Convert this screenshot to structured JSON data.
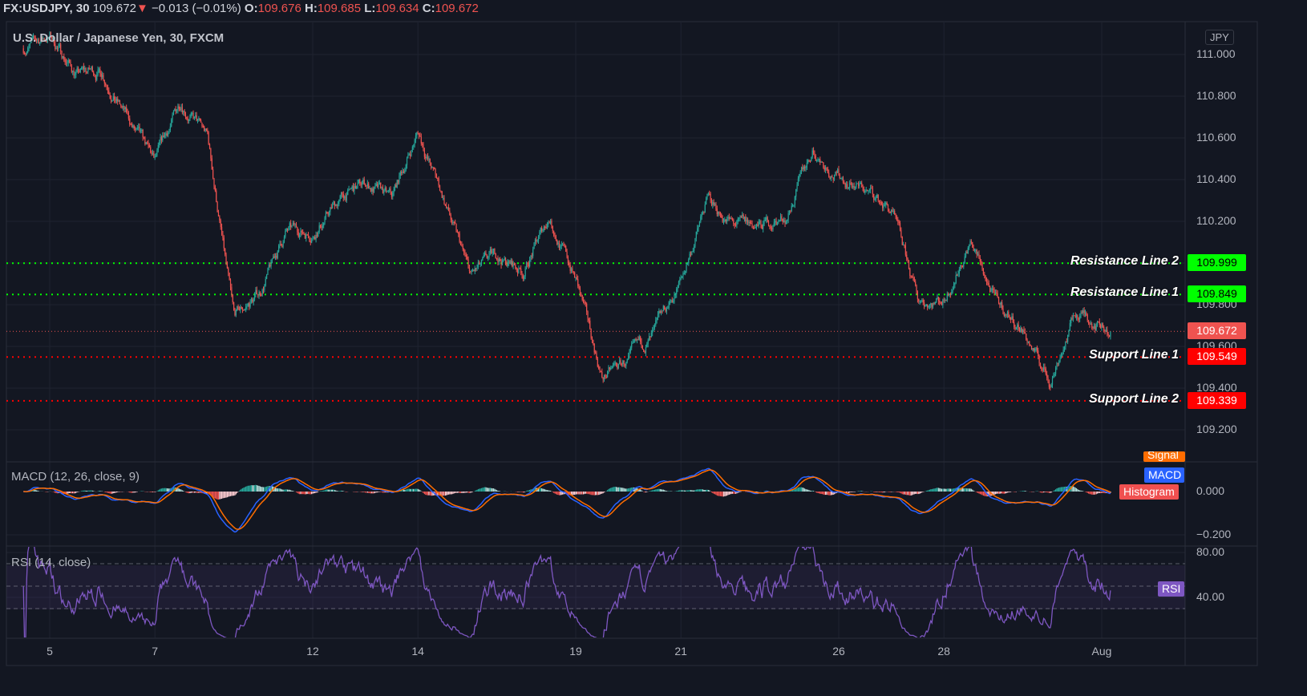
{
  "header": {
    "symbol": "FX:USDJPY, 30",
    "last": "109.672",
    "change": "−0.013 (−0.01%)",
    "o_label": "O:",
    "o": "109.676",
    "h_label": "H:",
    "h": "109.685",
    "l_label": "L:",
    "l": "109.634",
    "c_label": "C:",
    "c": "109.672"
  },
  "colors": {
    "background": "#131722",
    "up": "#26a69a",
    "down": "#ef5350",
    "resistance": "#00ff00",
    "support": "#ff0000",
    "macd": "#2962ff",
    "signal": "#ff6d00",
    "rsi": "#7e57c2"
  },
  "chart_data": {
    "type": "candlestick",
    "title": "U.S. Dollar / Japanese Yen, 30, FXCM",
    "currency": "JPY",
    "interval": "30",
    "ylim": [
      109.03,
      111.15
    ],
    "y_ticks": [
      "111.000",
      "110.800",
      "110.600",
      "110.400",
      "110.200",
      "109.800",
      "109.600",
      "109.400",
      "109.200"
    ],
    "x_ticks": [
      "5",
      "7",
      "12",
      "14",
      "19",
      "21",
      "26",
      "28",
      "Aug"
    ],
    "grid": true,
    "close_path": [
      {
        "t": "Jul 02 12:00",
        "close": 111.03
      },
      {
        "t": "Jul 05 00:00",
        "close": 111.09
      },
      {
        "t": "Jul 05 12:00",
        "close": 110.91
      },
      {
        "t": "Jul 06 00:00",
        "close": 110.92
      },
      {
        "t": "Jul 06 12:00",
        "close": 110.68
      },
      {
        "t": "Jul 07 00:00",
        "close": 110.47
      },
      {
        "t": "Jul 07 12:00",
        "close": 110.78
      },
      {
        "t": "Jul 08 00:00",
        "close": 110.6
      },
      {
        "t": "Jul 08 12:00",
        "close": 109.72
      },
      {
        "t": "Jul 09 00:00",
        "close": 109.86
      },
      {
        "t": "Jul 09 12:00",
        "close": 110.15
      },
      {
        "t": "Jul 12 00:00",
        "close": 110.15
      },
      {
        "t": "Jul 12 12:00",
        "close": 110.3
      },
      {
        "t": "Jul 13 00:00",
        "close": 110.38
      },
      {
        "t": "Jul 13 12:00",
        "close": 110.3
      },
      {
        "t": "Jul 14 00:00",
        "close": 110.63
      },
      {
        "t": "Jul 14 12:00",
        "close": 110.3
      },
      {
        "t": "Jul 15 00:00",
        "close": 109.93
      },
      {
        "t": "Jul 15 12:00",
        "close": 110.03
      },
      {
        "t": "Jul 16 00:00",
        "close": 109.96
      },
      {
        "t": "Jul 16 12:00",
        "close": 110.22
      },
      {
        "t": "Jul 19 00:00",
        "close": 109.92
      },
      {
        "t": "Jul 19 12:00",
        "close": 109.45
      },
      {
        "t": "Jul 20 00:00",
        "close": 109.53
      },
      {
        "t": "Jul 20 12:00",
        "close": 109.65
      },
      {
        "t": "Jul 21 00:00",
        "close": 109.91
      },
      {
        "t": "Jul 21 12:00",
        "close": 110.3
      },
      {
        "t": "Jul 22 00:00",
        "close": 110.18
      },
      {
        "t": "Jul 22 12:00",
        "close": 110.17
      },
      {
        "t": "Jul 23 00:00",
        "close": 110.22
      },
      {
        "t": "Jul 23 12:00",
        "close": 110.54
      },
      {
        "t": "Jul 26 00:00",
        "close": 110.42
      },
      {
        "t": "Jul 26 12:00",
        "close": 110.35
      },
      {
        "t": "Jul 27 00:00",
        "close": 110.25
      },
      {
        "t": "Jul 27 12:00",
        "close": 109.82
      },
      {
        "t": "Jul 28 00:00",
        "close": 109.83
      },
      {
        "t": "Jul 28 12:00",
        "close": 110.11
      },
      {
        "t": "Jul 29 00:00",
        "close": 109.8
      },
      {
        "t": "Jul 29 12:00",
        "close": 109.68
      },
      {
        "t": "Jul 30 00:00",
        "close": 109.43
      },
      {
        "t": "Jul 30 12:00",
        "close": 109.76
      },
      {
        "t": "Aug 02 00:00",
        "close": 109.72
      },
      {
        "t": "Aug 02 04:00",
        "close": 109.672
      }
    ],
    "last_price": {
      "value": 109.672,
      "label": "109.672"
    },
    "horizontal_lines": [
      {
        "name": "Resistance Line 2",
        "value": 109.999,
        "label": "109.999",
        "kind": "resistance"
      },
      {
        "name": "Resistance Line 1",
        "value": 109.849,
        "label": "109.849",
        "kind": "resistance"
      },
      {
        "name": "Support Line 1",
        "value": 109.549,
        "label": "109.549",
        "kind": "support"
      },
      {
        "name": "Support Line 2",
        "value": 109.339,
        "label": "109.339",
        "kind": "support"
      }
    ],
    "macd": {
      "title": "MACD (12, 26, close, 9)",
      "fast": 12,
      "slow": 26,
      "signal": 9,
      "ylim": [
        -0.24,
        0.13
      ],
      "y_ticks": [
        "0.000",
        "−0.200"
      ],
      "legend": [
        "Signal",
        "MACD",
        "Histogram"
      ]
    },
    "rsi": {
      "title": "RSI (14, close)",
      "length": 14,
      "ylim": [
        14,
        86
      ],
      "bands": [
        30,
        50,
        70
      ],
      "y_ticks": [
        "80.00",
        "40.00"
      ],
      "legend": "RSI"
    }
  }
}
